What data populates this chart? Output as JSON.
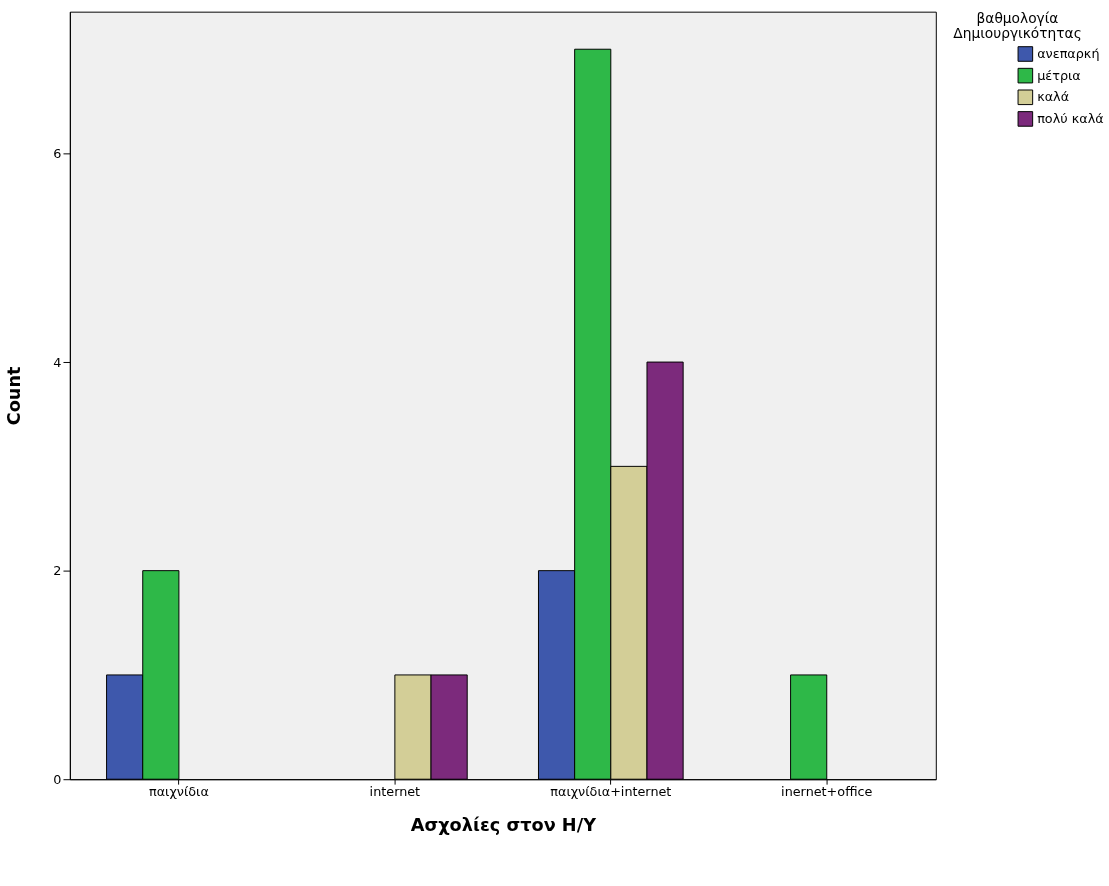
{
  "chart_data": {
    "type": "bar",
    "xlabel": "Ασχολίες στον Η/Υ",
    "ylabel": "Count",
    "legend_title": "βαθμολογία\nΔημιουργικότητας",
    "categories": [
      "παιχνίδια",
      "internet",
      "παιχνίδια+internet",
      "inernet+office"
    ],
    "series": [
      {
        "name": "ανεπαρκή",
        "color": "#3e58ac",
        "values": [
          1,
          null,
          2,
          null
        ]
      },
      {
        "name": "μέτρια",
        "color": "#2eb848",
        "values": [
          2,
          null,
          7,
          1
        ]
      },
      {
        "name": "καλά",
        "color": "#d3ce97",
        "values": [
          null,
          1,
          3,
          null
        ]
      },
      {
        "name": "πολύ καλά",
        "color": "#7c2a7c",
        "values": [
          null,
          1,
          4,
          null
        ]
      }
    ],
    "ylim": [
      0,
      7.36
    ],
    "yticks": [
      0,
      2,
      4,
      6
    ],
    "grid": false,
    "legend": "top right"
  }
}
